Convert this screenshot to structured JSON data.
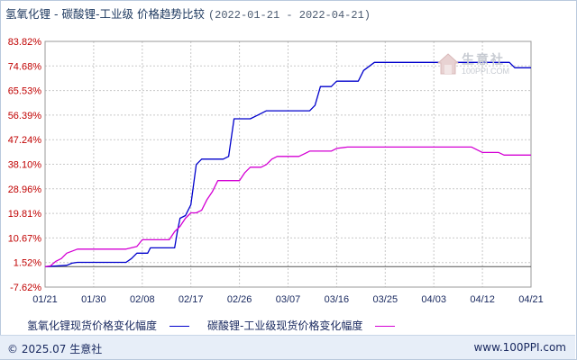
{
  "header": {
    "title": "氢氧化锂 - 碳酸锂-工业级 价格趋势比较",
    "date_range": "(2022-01-21 - 2022-04-21)"
  },
  "watermark": {
    "text": "生意社",
    "url": "100PPI.COM"
  },
  "legend": [
    {
      "label": "氢氧化锂现货价格变化幅度",
      "color": "#0000cc"
    },
    {
      "label": "碳酸锂-工业级现货价格变化幅度",
      "color": "#d400d4"
    }
  ],
  "footer": {
    "copyright": "© 2025.07 生意社",
    "site": "www.100PPI.com"
  },
  "chart_data": {
    "type": "line",
    "y_ticks": [
      "83.82%",
      "74.68%",
      "65.53%",
      "56.39%",
      "47.24%",
      "38.10%",
      "28.96%",
      "19.81%",
      "10.67%",
      "1.52%",
      "-7.62%"
    ],
    "y_tick_values": [
      83.82,
      74.68,
      65.53,
      56.39,
      47.24,
      38.1,
      28.96,
      19.81,
      10.67,
      1.52,
      -7.62
    ],
    "ylim": [
      -7.62,
      83.82
    ],
    "x_ticks": [
      "01/21",
      "01/30",
      "02/08",
      "02/17",
      "02/26",
      "03/07",
      "03/16",
      "03/25",
      "04/03",
      "04/12",
      "04/21"
    ],
    "x_tick_days": [
      0,
      9,
      18,
      27,
      36,
      45,
      54,
      63,
      72,
      81,
      90
    ],
    "xlim": [
      0,
      90
    ],
    "grid": true,
    "series": [
      {
        "name": "氢氧化锂现货价格变化幅度",
        "color": "#0000cc",
        "points": [
          [
            0,
            0
          ],
          [
            4,
            0.5
          ],
          [
            5,
            1.3
          ],
          [
            6,
            1.6
          ],
          [
            15,
            1.6
          ],
          [
            16,
            3
          ],
          [
            17,
            5
          ],
          [
            19,
            5
          ],
          [
            19.5,
            7
          ],
          [
            20,
            7
          ],
          [
            24,
            7
          ],
          [
            24.5,
            13
          ],
          [
            25,
            18
          ],
          [
            26,
            19
          ],
          [
            27,
            23
          ],
          [
            28,
            38
          ],
          [
            29,
            40
          ],
          [
            33,
            40
          ],
          [
            34,
            41
          ],
          [
            35,
            55
          ],
          [
            36,
            55
          ],
          [
            38,
            55
          ],
          [
            39,
            56
          ],
          [
            40,
            57
          ],
          [
            41,
            58
          ],
          [
            47,
            58
          ],
          [
            49,
            58
          ],
          [
            50,
            60
          ],
          [
            51,
            67
          ],
          [
            53,
            67
          ],
          [
            54,
            69
          ],
          [
            56,
            69
          ],
          [
            58,
            69
          ],
          [
            59,
            73
          ],
          [
            61,
            76
          ],
          [
            67,
            76
          ],
          [
            69,
            76
          ],
          [
            72,
            76
          ],
          [
            77,
            76
          ],
          [
            80,
            76
          ],
          [
            81,
            76
          ],
          [
            83,
            76
          ],
          [
            86,
            76
          ],
          [
            87,
            74
          ],
          [
            90,
            74
          ]
        ]
      },
      {
        "name": "碳酸锂-工业级现货价格变化幅度",
        "color": "#d400d4",
        "points": [
          [
            0,
            0
          ],
          [
            1,
            0.3
          ],
          [
            2,
            2
          ],
          [
            3,
            3
          ],
          [
            4,
            5
          ],
          [
            6,
            6.5
          ],
          [
            9,
            6.5
          ],
          [
            15,
            6.5
          ],
          [
            17,
            7.5
          ],
          [
            18,
            10
          ],
          [
            20,
            10
          ],
          [
            23,
            10
          ],
          [
            24,
            13
          ],
          [
            25,
            15
          ],
          [
            26,
            18
          ],
          [
            27,
            20
          ],
          [
            28,
            20
          ],
          [
            29,
            21
          ],
          [
            30,
            25
          ],
          [
            31,
            28
          ],
          [
            32,
            32
          ],
          [
            35,
            32
          ],
          [
            36,
            32
          ],
          [
            37,
            35
          ],
          [
            38,
            37
          ],
          [
            40,
            37
          ],
          [
            41,
            38
          ],
          [
            42,
            40
          ],
          [
            43,
            41
          ],
          [
            47,
            41
          ],
          [
            48,
            42
          ],
          [
            49,
            43
          ],
          [
            50,
            43
          ],
          [
            53,
            43
          ],
          [
            54,
            44
          ],
          [
            56,
            44.5
          ],
          [
            60,
            44.5
          ],
          [
            62,
            44.5
          ],
          [
            66,
            44.5
          ],
          [
            70,
            44.5
          ],
          [
            72,
            44.5
          ],
          [
            76,
            44.5
          ],
          [
            79,
            44.5
          ],
          [
            80,
            43.5
          ],
          [
            81,
            42.5
          ],
          [
            84,
            42.5
          ],
          [
            85,
            41.5
          ],
          [
            90,
            41.5
          ]
        ]
      }
    ]
  }
}
